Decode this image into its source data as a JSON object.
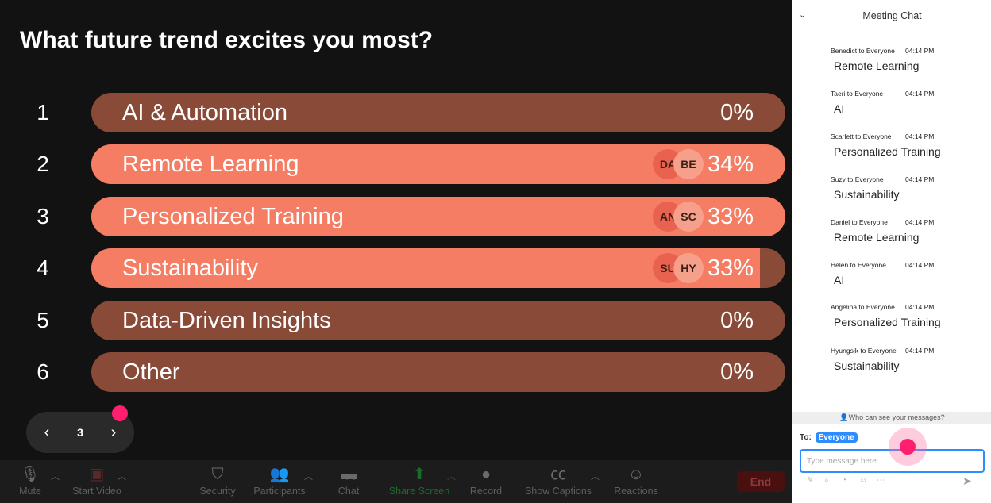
{
  "poll": {
    "question": "What future trend excites you most?",
    "options": [
      {
        "num": "1",
        "label": "AI & Automation",
        "percent": "0%",
        "fill": 0,
        "avatars": []
      },
      {
        "num": "2",
        "label": "Remote Learning",
        "percent": "34%",
        "fill": 100,
        "avatars": [
          "DA",
          "BE"
        ]
      },
      {
        "num": "3",
        "label": "Personalized Training",
        "percent": "33%",
        "fill": 100,
        "avatars": [
          "AN",
          "SC"
        ]
      },
      {
        "num": "4",
        "label": "Sustainability",
        "percent": "33%",
        "fill": 96.3,
        "avatars": [
          "SU",
          "HY"
        ]
      },
      {
        "num": "5",
        "label": "Data-Driven Insights",
        "percent": "0%",
        "fill": 0,
        "avatars": []
      },
      {
        "num": "6",
        "label": "Other",
        "percent": "0%",
        "fill": 0,
        "avatars": []
      }
    ],
    "colors": {
      "bar_bg": "#8a4a38",
      "bar_fill": "#f47d63"
    }
  },
  "pager": {
    "page": "3",
    "prev_icon": "chevron-left-icon",
    "next_icon": "chevron-right-icon"
  },
  "toolbar": {
    "mute": "Mute",
    "start_video": "Start Video",
    "security": "Security",
    "participants": "Participants",
    "chat": "Chat",
    "share_screen": "Share Screen",
    "record": "Record",
    "show_captions": "Show Captions",
    "reactions": "Reactions",
    "end": "End"
  },
  "chat": {
    "title": "Meeting Chat",
    "messages": [
      {
        "sender": "Benedict to Everyone",
        "time": "04:14 PM",
        "text": "Remote Learning"
      },
      {
        "sender": "Taeri to Everyone",
        "time": "04:14 PM",
        "text": "AI"
      },
      {
        "sender": "Scarlett to Everyone",
        "time": "04:14 PM",
        "text": "Personalized Training"
      },
      {
        "sender": "Suzy to Everyone",
        "time": "04:14 PM",
        "text": "Sustainability"
      },
      {
        "sender": "Daniel to Everyone",
        "time": "04:14 PM",
        "text": "Remote Learning"
      },
      {
        "sender": "Helen to Everyone",
        "time": "04:14 PM",
        "text": "AI"
      },
      {
        "sender": "Angelina to Everyone",
        "time": "04:14 PM",
        "text": "Personalized Training"
      },
      {
        "sender": "Hyungsik to Everyone",
        "time": "04:14 PM",
        "text": "Sustainability"
      }
    ],
    "who_can_see": "Who can see your messages?",
    "to_label": "To:",
    "to_value": "Everyone",
    "input_placeholder": "Type message here..."
  }
}
